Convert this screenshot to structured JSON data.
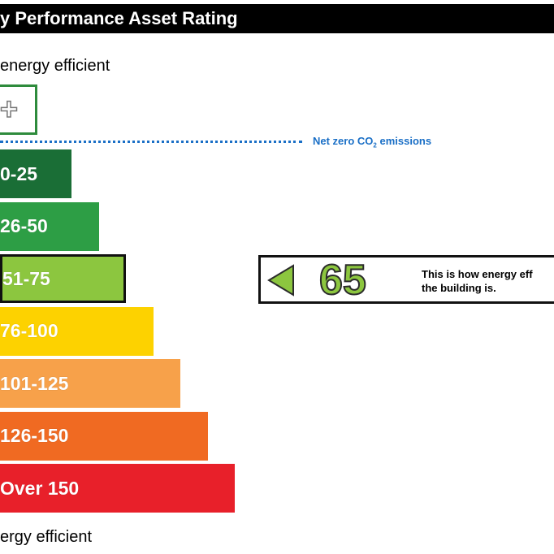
{
  "header": {
    "title": "y Performance Asset Rating"
  },
  "scale": {
    "top_label": "energy efficient",
    "bottom_label": "ergy efficient",
    "aplus_symbol": "+",
    "netzero_label_pre": "Net zero CO",
    "netzero_label_sub": "2",
    "netzero_label_post": " emissions"
  },
  "chart_data": {
    "type": "bar",
    "orientation": "horizontal",
    "categories": [
      "0-25",
      "26-50",
      "51-75",
      "76-100",
      "101-125",
      "126-150",
      "Over 150"
    ],
    "colors": [
      "#1a6e36",
      "#2d9e45",
      "#8cc63f",
      "#fdd200",
      "#f7a14a",
      "#f06a22",
      "#e8202a"
    ],
    "highlighted_band": "51-75",
    "rating": {
      "value": 65,
      "caption_line1": "This is how energy eff",
      "caption_line2": "the building is."
    }
  }
}
